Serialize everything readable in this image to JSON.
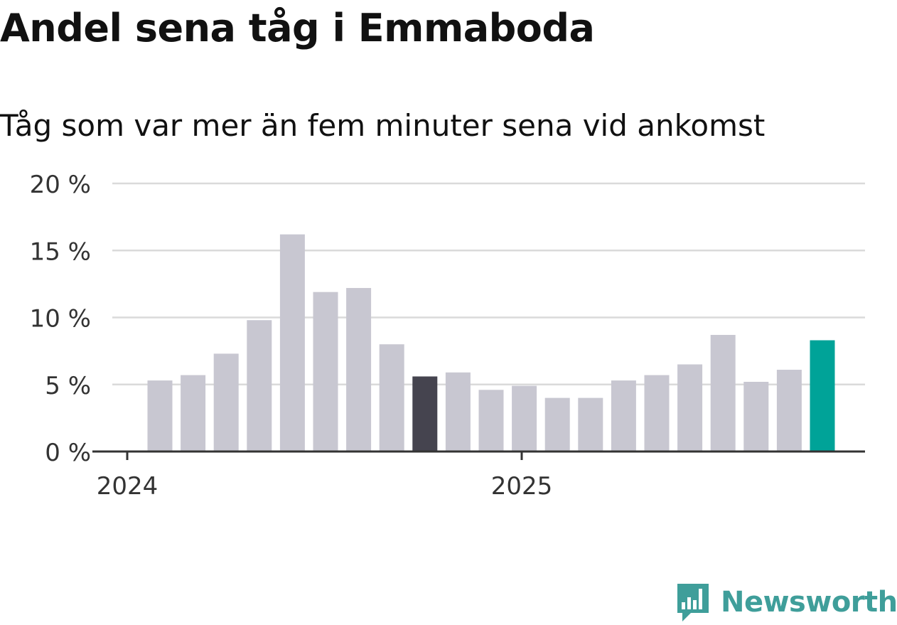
{
  "chart_data": {
    "type": "bar",
    "title": "Andel sena tåg i Emmaboda",
    "subtitle": "Tåg som var mer än fem minuter sena vid ankomst",
    "x_tick_labels": [
      "2024",
      "2025"
    ],
    "y_ticks": [
      0,
      5,
      10,
      15,
      20
    ],
    "y_tick_suffix": " %",
    "ylim": [
      0,
      20
    ],
    "grid": "horizontal",
    "values": [
      5.3,
      5.7,
      7.3,
      9.8,
      16.2,
      11.9,
      12.2,
      8.0,
      5.6,
      5.9,
      4.6,
      4.9,
      4.0,
      4.0,
      5.3,
      5.7,
      6.5,
      8.7,
      5.2,
      6.1,
      8.3
    ],
    "highlight": {
      "dark_index": 8,
      "accent_index": 20
    },
    "colors": {
      "bar": "#c8c7d1",
      "bar_dark": "#45444f",
      "bar_accent": "#00a398",
      "grid": "#dadada",
      "axis": "#333333",
      "tick_text": "#333333"
    }
  },
  "branding": {
    "logo_text": "Newsworthy",
    "logo_color": "#3f9e9a",
    "logo_icon": "bar-chart-bubble-icon"
  }
}
